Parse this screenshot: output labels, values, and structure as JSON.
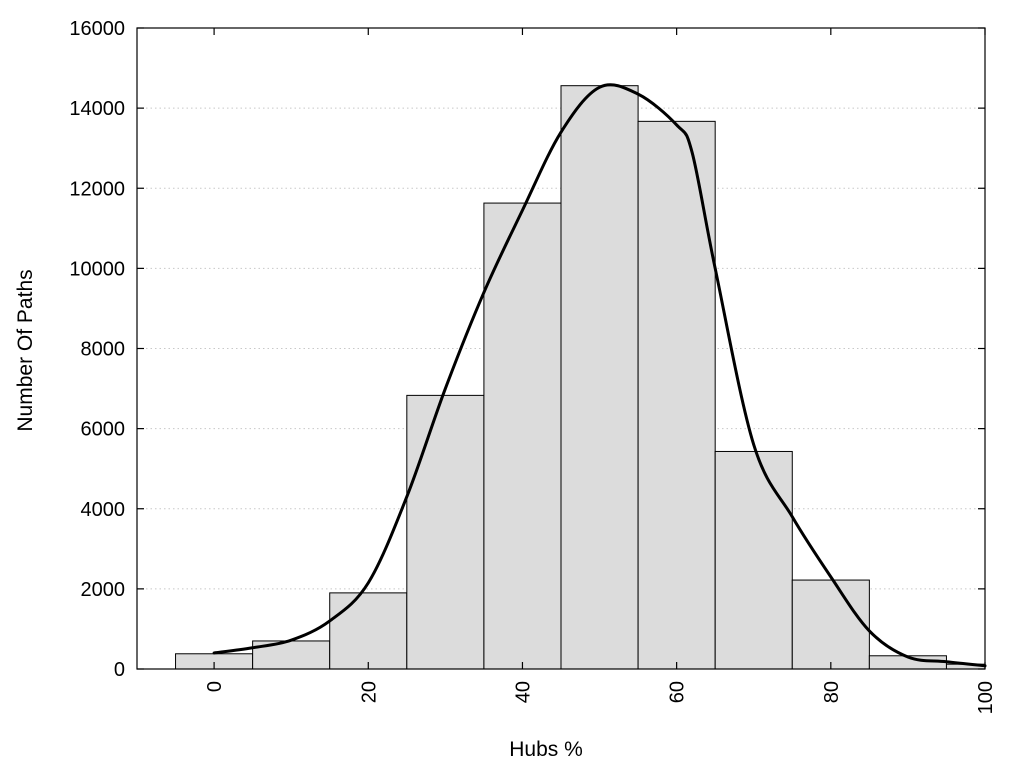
{
  "chart_data": {
    "type": "bar",
    "title": "",
    "xlabel": "Hubs %",
    "ylabel": "Number Of Paths",
    "xlim": [
      -10,
      100
    ],
    "ylim": [
      0,
      16000
    ],
    "bar_width": 10,
    "grid": "horizontal dotted",
    "x_ticks": [
      0,
      20,
      40,
      60,
      80,
      100
    ],
    "y_ticks": [
      0,
      2000,
      4000,
      6000,
      8000,
      10000,
      12000,
      14000,
      16000
    ],
    "bars": [
      {
        "x": 0,
        "value": 380
      },
      {
        "x": 10,
        "value": 700
      },
      {
        "x": 20,
        "value": 1900
      },
      {
        "x": 30,
        "value": 6830
      },
      {
        "x": 40,
        "value": 11630
      },
      {
        "x": 50,
        "value": 14560
      },
      {
        "x": 60,
        "value": 13670
      },
      {
        "x": 70,
        "value": 5430
      },
      {
        "x": 80,
        "value": 2220
      },
      {
        "x": 90,
        "value": 330
      },
      {
        "x": 100,
        "value": 120
      }
    ],
    "series": [
      {
        "type": "line",
        "x": [
          0,
          5,
          10,
          15,
          20,
          25,
          30,
          35,
          40,
          45,
          50,
          55,
          60,
          62,
          65,
          70,
          75,
          80,
          85,
          90,
          95,
          100
        ],
        "values": [
          400,
          530,
          720,
          1200,
          2150,
          4300,
          7000,
          9400,
          11450,
          13400,
          14520,
          14350,
          13580,
          12900,
          10000,
          5600,
          3800,
          2300,
          950,
          300,
          180,
          80
        ]
      }
    ],
    "bar_color": "#dcdcdc",
    "line_color": "#000000"
  }
}
